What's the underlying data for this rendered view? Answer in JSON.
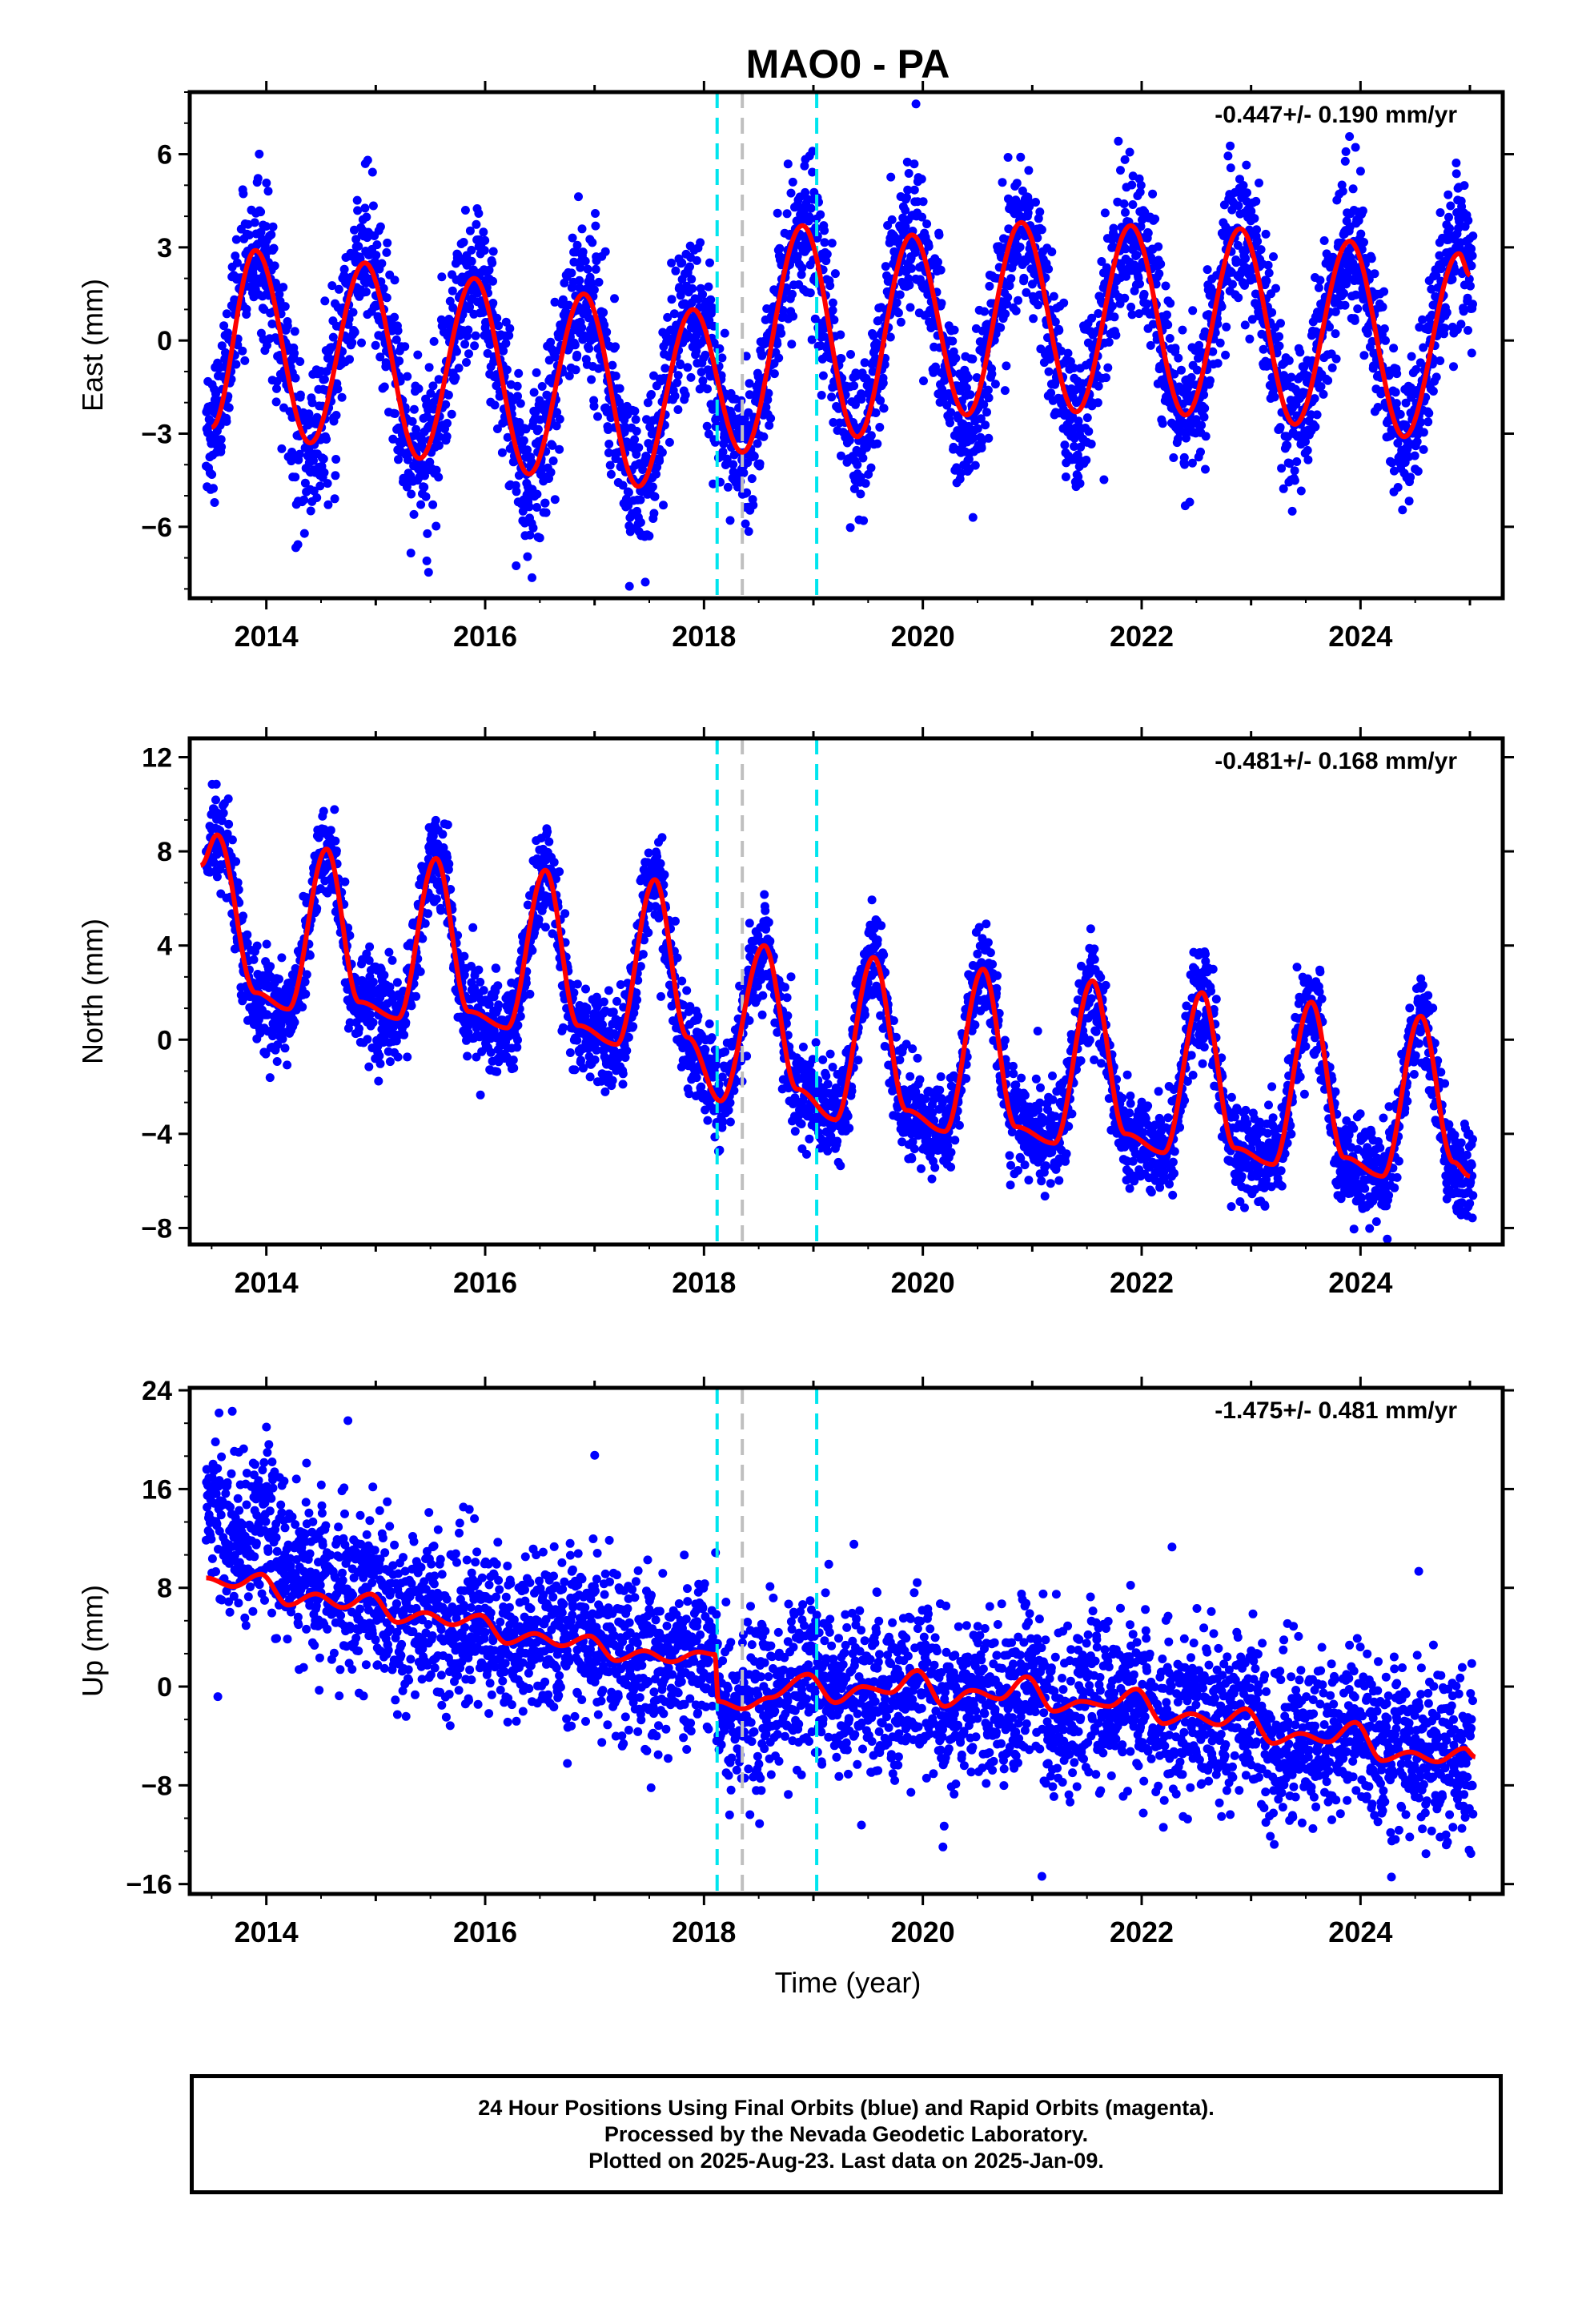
{
  "title": "MAO0 - PA",
  "colors": {
    "points": "#0000ff",
    "model": "#ff0000",
    "offset_equipment": "#00e5ee",
    "offset_other": "#bfbfbf",
    "frame": "#000000"
  },
  "xaxis": {
    "label": "Time (year)",
    "range": [
      2013.3,
      2025.3
    ],
    "tick_labels": [
      "2014",
      "2016",
      "2018",
      "2020",
      "2022",
      "2024"
    ],
    "ticks": [
      2014,
      2016,
      2018,
      2020,
      2022,
      2024
    ]
  },
  "offsets": [
    {
      "year": 2018.12,
      "kind": "equipment"
    },
    {
      "year": 2018.35,
      "kind": "other"
    },
    {
      "year": 2019.03,
      "kind": "equipment"
    }
  ],
  "chart_data": [
    {
      "type": "scatter",
      "component": "east",
      "ylabel": "East (mm)",
      "rate": "-0.447+/- 0.190 mm/yr",
      "ylim": [
        -8.3,
        8.0
      ],
      "yticks": [
        -6,
        -3,
        0,
        3,
        6
      ],
      "ytick_labels": [
        "-6",
        "-3",
        "0",
        "3",
        "6"
      ],
      "series": [
        {
          "role": "daily-positions",
          "model": {
            "offset": 1.6,
            "rate": -0.447,
            "amp": 3.2,
            "phase": 0.9,
            "t0": 2013.5,
            "steps": []
          },
          "scatter_sd": 1.2
        },
        {
          "role": "fitted-model",
          "x": [
            2013.5,
            2013.9,
            2014.4,
            2014.9,
            2015.4,
            2015.9,
            2016.4,
            2016.9,
            2017.4,
            2017.9,
            2018.35,
            2018.9,
            2019.4,
            2019.9,
            2020.4,
            2020.9,
            2021.4,
            2021.9,
            2022.4,
            2022.9,
            2023.4,
            2023.9,
            2024.4,
            2024.9,
            2025.0
          ],
          "y": [
            -2.8,
            2.9,
            -3.3,
            2.5,
            -3.8,
            2.0,
            -4.3,
            1.5,
            -4.7,
            1.0,
            -3.6,
            3.7,
            -3.1,
            3.4,
            -2.4,
            3.8,
            -2.3,
            3.7,
            -2.4,
            3.6,
            -2.7,
            3.2,
            -3.1,
            2.8,
            2.1
          ]
        }
      ]
    },
    {
      "type": "scatter",
      "component": "north",
      "ylabel": "North (mm)",
      "rate": "-0.481+/- 0.168 mm/yr",
      "ylim": [
        -8.7,
        12.8
      ],
      "yticks": [
        -8,
        -4,
        0,
        4,
        8,
        12
      ],
      "ytick_labels": [
        "-8",
        "-4",
        "0",
        "4",
        "8",
        "12"
      ],
      "series": [
        {
          "role": "daily-positions",
          "scatter_sd": 1.0
        },
        {
          "role": "fitted-model",
          "x": [
            2013.4,
            2013.55,
            2013.9,
            2014.2,
            2014.55,
            2014.85,
            2015.2,
            2015.55,
            2015.85,
            2016.2,
            2016.55,
            2016.85,
            2017.2,
            2017.55,
            2017.85,
            2018.15,
            2018.55,
            2018.85,
            2019.2,
            2019.55,
            2019.85,
            2020.2,
            2020.55,
            2020.85,
            2021.2,
            2021.55,
            2021.85,
            2022.2,
            2022.55,
            2022.85,
            2023.2,
            2023.55,
            2023.85,
            2024.2,
            2024.55,
            2024.85,
            2025.0
          ],
          "y": [
            7.4,
            8.7,
            2.0,
            1.3,
            8.1,
            1.6,
            0.9,
            7.7,
            1.2,
            0.5,
            7.2,
            0.6,
            -0.2,
            6.8,
            0.1,
            -2.6,
            4.0,
            -2.1,
            -3.4,
            3.5,
            -3.0,
            -3.9,
            3.0,
            -3.7,
            -4.4,
            2.5,
            -4.0,
            -4.8,
            2.0,
            -4.6,
            -5.3,
            1.6,
            -5.0,
            -5.8,
            1.0,
            -5.2,
            -5.8
          ]
        }
      ]
    },
    {
      "type": "scatter",
      "component": "up",
      "ylabel": "Up (mm)",
      "rate": "-1.475+/- 0.481 mm/yr",
      "ylim": [
        -16.8,
        24.2
      ],
      "yticks": [
        -16,
        -8,
        0,
        8,
        16,
        24
      ],
      "ytick_labels": [
        "-16",
        "-8",
        "0",
        "8",
        "16",
        "24"
      ],
      "series": [
        {
          "role": "daily-positions",
          "scatter_sd": 3.3
        },
        {
          "role": "fitted-model",
          "x": [
            2013.45,
            2013.7,
            2013.95,
            2014.2,
            2014.45,
            2014.7,
            2014.95,
            2015.2,
            2015.45,
            2015.7,
            2015.95,
            2016.2,
            2016.45,
            2016.7,
            2016.95,
            2017.2,
            2017.45,
            2017.7,
            2017.95,
            2018.1,
            2018.13,
            2018.35,
            2018.6,
            2018.95,
            2019.2,
            2019.45,
            2019.7,
            2019.95,
            2020.2,
            2020.45,
            2020.7,
            2020.95,
            2021.2,
            2021.45,
            2021.7,
            2021.95,
            2022.2,
            2022.45,
            2022.7,
            2022.95,
            2023.2,
            2023.45,
            2023.7,
            2023.95,
            2024.2,
            2024.45,
            2024.7,
            2024.95,
            2025.05
          ],
          "y": [
            8.8,
            8.1,
            9.1,
            6.6,
            7.5,
            6.4,
            7.5,
            5.2,
            6.0,
            5.0,
            5.8,
            3.5,
            4.3,
            3.3,
            4.1,
            2.1,
            2.9,
            2.0,
            2.8,
            2.6,
            -1.2,
            -1.8,
            -0.9,
            1.0,
            -1.3,
            0.0,
            -0.5,
            1.3,
            -1.6,
            -0.3,
            -1.0,
            0.8,
            -2.0,
            -1.2,
            -1.6,
            -0.2,
            -3.0,
            -2.2,
            -3.1,
            -1.8,
            -4.6,
            -3.8,
            -4.5,
            -2.9,
            -6.0,
            -5.3,
            -6.1,
            -5.0,
            -5.7
          ]
        }
      ]
    }
  ],
  "footer": {
    "line1": "24 Hour Positions Using Final Orbits (blue) and Rapid Orbits (magenta).",
    "line2": "Processed by the Nevada Geodetic Laboratory.",
    "line3": "Plotted on 2025-Aug-23. Last data on 2025-Jan-09."
  }
}
